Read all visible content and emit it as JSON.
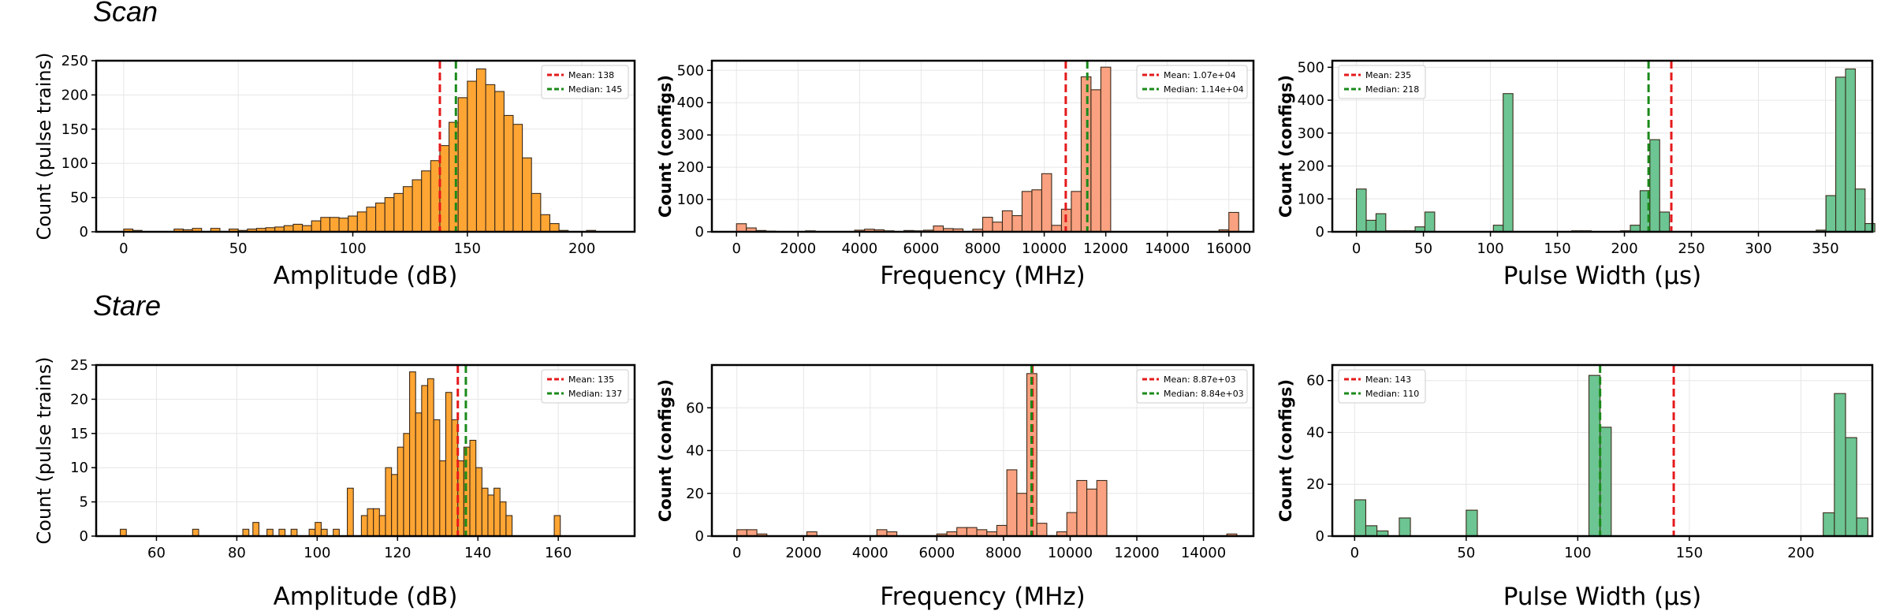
{
  "row_titles": [
    "Scan",
    "Stare"
  ],
  "colors": {
    "amplitude": "#ffa533",
    "frequency": "#f9a180",
    "pulse_width": "#6cc592",
    "mean_line": "#e41a1c",
    "median_line": "#1a8a1a"
  },
  "chart_data": [
    {
      "type": "bar",
      "panel": "scan-amplitude",
      "row": "Scan",
      "xlabel": "Amplitude (dB)",
      "ylabel": "Count (pulse trains)",
      "xlim": [
        -12,
        223
      ],
      "ylim": [
        0,
        250
      ],
      "xticks": [
        0,
        50,
        100,
        150,
        200
      ],
      "yticks": [
        0,
        50,
        100,
        150,
        200,
        250
      ],
      "legend_position": "top-right",
      "mean": 138,
      "median": 145,
      "legend": [
        "Mean: 138",
        "Median: 145"
      ],
      "bin_width": 4,
      "bins": [
        [
          0,
          4
        ],
        [
          4,
          2
        ],
        [
          22,
          4
        ],
        [
          26,
          3
        ],
        [
          30,
          5
        ],
        [
          38,
          5
        ],
        [
          46,
          4
        ],
        [
          50,
          2
        ],
        [
          54,
          4
        ],
        [
          58,
          5
        ],
        [
          62,
          6
        ],
        [
          66,
          7
        ],
        [
          70,
          9
        ],
        [
          74,
          11
        ],
        [
          78,
          9
        ],
        [
          82,
          16
        ],
        [
          86,
          21
        ],
        [
          90,
          21
        ],
        [
          94,
          20
        ],
        [
          98,
          23
        ],
        [
          102,
          29
        ],
        [
          106,
          36
        ],
        [
          110,
          42
        ],
        [
          114,
          50
        ],
        [
          118,
          56
        ],
        [
          122,
          66
        ],
        [
          126,
          76
        ],
        [
          130,
          89
        ],
        [
          134,
          104
        ],
        [
          138,
          126
        ],
        [
          142,
          160
        ],
        [
          146,
          196
        ],
        [
          150,
          220
        ],
        [
          154,
          238
        ],
        [
          158,
          215
        ],
        [
          162,
          205
        ],
        [
          166,
          170
        ],
        [
          170,
          157
        ],
        [
          174,
          108
        ],
        [
          178,
          56
        ],
        [
          182,
          25
        ],
        [
          186,
          12
        ],
        [
          190,
          2
        ],
        [
          202,
          2
        ]
      ]
    },
    {
      "type": "bar",
      "panel": "scan-frequency",
      "row": "Scan",
      "xlabel": "Frequency (MHz)",
      "ylabel": "Count (configs)",
      "xlim": [
        -800,
        16800
      ],
      "ylim": [
        0,
        530
      ],
      "xticks": [
        0,
        2000,
        4000,
        6000,
        8000,
        10000,
        12000,
        14000,
        16000
      ],
      "yticks": [
        0,
        100,
        200,
        300,
        400,
        500
      ],
      "legend_position": "top-right",
      "mean": 10700,
      "median": 11400,
      "legend": [
        "Mean: 1.07e+04",
        "Median: 1.14e+04"
      ],
      "bin_width": 320,
      "bins": [
        [
          0,
          25
        ],
        [
          320,
          12
        ],
        [
          640,
          4
        ],
        [
          960,
          2
        ],
        [
          2240,
          3
        ],
        [
          3840,
          5
        ],
        [
          4160,
          8
        ],
        [
          4480,
          6
        ],
        [
          4800,
          3
        ],
        [
          5440,
          4
        ],
        [
          5760,
          3
        ],
        [
          6080,
          5
        ],
        [
          6400,
          18
        ],
        [
          6720,
          10
        ],
        [
          7040,
          9
        ],
        [
          7680,
          8
        ],
        [
          8000,
          45
        ],
        [
          8320,
          30
        ],
        [
          8640,
          65
        ],
        [
          8960,
          50
        ],
        [
          9280,
          125
        ],
        [
          9600,
          130
        ],
        [
          9920,
          180
        ],
        [
          10240,
          20
        ],
        [
          10560,
          70
        ],
        [
          10880,
          125
        ],
        [
          11200,
          480
        ],
        [
          11520,
          440
        ],
        [
          11840,
          510
        ],
        [
          15680,
          6
        ],
        [
          16000,
          60
        ]
      ]
    },
    {
      "type": "bar",
      "panel": "scan-pulse-width",
      "row": "Scan",
      "xlabel": "Pulse Width (µs)",
      "ylabel": "Count (configs)",
      "xlim": [
        -18,
        385
      ],
      "ylim": [
        0,
        520
      ],
      "xticks": [
        0,
        50,
        100,
        150,
        200,
        250,
        300,
        350
      ],
      "yticks": [
        0,
        100,
        200,
        300,
        400,
        500
      ],
      "legend_position": "top-left",
      "mean": 235,
      "median": 218,
      "legend": [
        "Mean: 235",
        "Median: 218"
      ],
      "bin_width": 7.3,
      "bins": [
        [
          0,
          130
        ],
        [
          7.3,
          35
        ],
        [
          14.6,
          55
        ],
        [
          21.9,
          3
        ],
        [
          29.2,
          3
        ],
        [
          36.5,
          3
        ],
        [
          43.8,
          15
        ],
        [
          51.1,
          60
        ],
        [
          102.2,
          20
        ],
        [
          109.5,
          420
        ],
        [
          160.6,
          3
        ],
        [
          167.9,
          3
        ],
        [
          197.1,
          3
        ],
        [
          204.4,
          20
        ],
        [
          211.7,
          125
        ],
        [
          219,
          280
        ],
        [
          226.3,
          60
        ],
        [
          343.1,
          5
        ],
        [
          350.4,
          110
        ],
        [
          357.7,
          470
        ],
        [
          365,
          495
        ],
        [
          372.3,
          130
        ],
        [
          379.6,
          25
        ]
      ]
    },
    {
      "type": "bar",
      "panel": "stare-amplitude",
      "row": "Stare",
      "xlabel": "Amplitude (dB)",
      "ylabel": "Count (pulse trains)",
      "xlim": [
        45,
        179
      ],
      "ylim": [
        0,
        25
      ],
      "xticks": [
        60,
        80,
        100,
        120,
        140,
        160
      ],
      "yticks": [
        0,
        5,
        10,
        15,
        20,
        25
      ],
      "legend_position": "top-right",
      "mean": 135,
      "median": 137,
      "legend": [
        "Mean: 135",
        "Median: 137"
      ],
      "bin_width": 1.5,
      "bins": [
        [
          51,
          1
        ],
        [
          69,
          1
        ],
        [
          81.5,
          1
        ],
        [
          84,
          2
        ],
        [
          87.5,
          1
        ],
        [
          90.5,
          1
        ],
        [
          93.5,
          1
        ],
        [
          98,
          1
        ],
        [
          99.5,
          2
        ],
        [
          101,
          1
        ],
        [
          104,
          1
        ],
        [
          107.5,
          7
        ],
        [
          111,
          3
        ],
        [
          112.5,
          4
        ],
        [
          114,
          4
        ],
        [
          115.5,
          3
        ],
        [
          117,
          10
        ],
        [
          118.5,
          9
        ],
        [
          120,
          13
        ],
        [
          121.5,
          15
        ],
        [
          123,
          24
        ],
        [
          124.5,
          18
        ],
        [
          126,
          22
        ],
        [
          127.5,
          23
        ],
        [
          129,
          17
        ],
        [
          130.5,
          11
        ],
        [
          132,
          21
        ],
        [
          133.5,
          17
        ],
        [
          135,
          11
        ],
        [
          136.5,
          13
        ],
        [
          138,
          14
        ],
        [
          139.5,
          10
        ],
        [
          141,
          7
        ],
        [
          142.5,
          6
        ],
        [
          144,
          7
        ],
        [
          145.5,
          5
        ],
        [
          147,
          3
        ],
        [
          159,
          3
        ]
      ]
    },
    {
      "type": "bar",
      "panel": "stare-frequency",
      "row": "Stare",
      "xlabel": "Frequency (MHz)",
      "ylabel": "Count (configs)",
      "xlim": [
        -750,
        15500
      ],
      "ylim": [
        0,
        80
      ],
      "xticks": [
        0,
        2000,
        4000,
        6000,
        8000,
        10000,
        12000,
        14000
      ],
      "yticks": [
        0,
        20,
        40,
        60
      ],
      "legend_position": "top-right",
      "mean": 8870,
      "median": 8840,
      "legend": [
        "Mean: 8.87e+03",
        "Median: 8.84e+03"
      ],
      "bin_width": 300,
      "bins": [
        [
          0,
          3
        ],
        [
          300,
          3
        ],
        [
          600,
          1
        ],
        [
          2100,
          2
        ],
        [
          4200,
          3
        ],
        [
          4500,
          2
        ],
        [
          6000,
          1
        ],
        [
          6300,
          2
        ],
        [
          6600,
          4
        ],
        [
          6900,
          4
        ],
        [
          7200,
          3
        ],
        [
          7500,
          2
        ],
        [
          7800,
          5
        ],
        [
          8100,
          31
        ],
        [
          8400,
          20
        ],
        [
          8700,
          76
        ],
        [
          9000,
          6
        ],
        [
          9600,
          2
        ],
        [
          9900,
          11
        ],
        [
          10200,
          26
        ],
        [
          10500,
          22
        ],
        [
          10800,
          26
        ],
        [
          14700,
          1
        ]
      ]
    },
    {
      "type": "bar",
      "panel": "stare-pulse-width",
      "row": "Stare",
      "xlabel": "Pulse Width (µs)",
      "ylabel": "Count (configs)",
      "xlim": [
        -10,
        232
      ],
      "ylim": [
        0,
        66
      ],
      "xticks": [
        0,
        50,
        100,
        150,
        200
      ],
      "yticks": [
        0,
        20,
        40,
        60
      ],
      "legend_position": "top-left",
      "mean": 143,
      "median": 110,
      "legend": [
        "Mean: 143",
        "Median: 110"
      ],
      "bin_width": 5,
      "bins": [
        [
          0,
          14
        ],
        [
          5,
          4
        ],
        [
          10,
          2
        ],
        [
          20,
          7
        ],
        [
          50,
          10
        ],
        [
          105,
          62
        ],
        [
          110,
          42
        ],
        [
          210,
          9
        ],
        [
          215,
          55
        ],
        [
          220,
          38
        ],
        [
          225,
          7
        ]
      ]
    }
  ]
}
